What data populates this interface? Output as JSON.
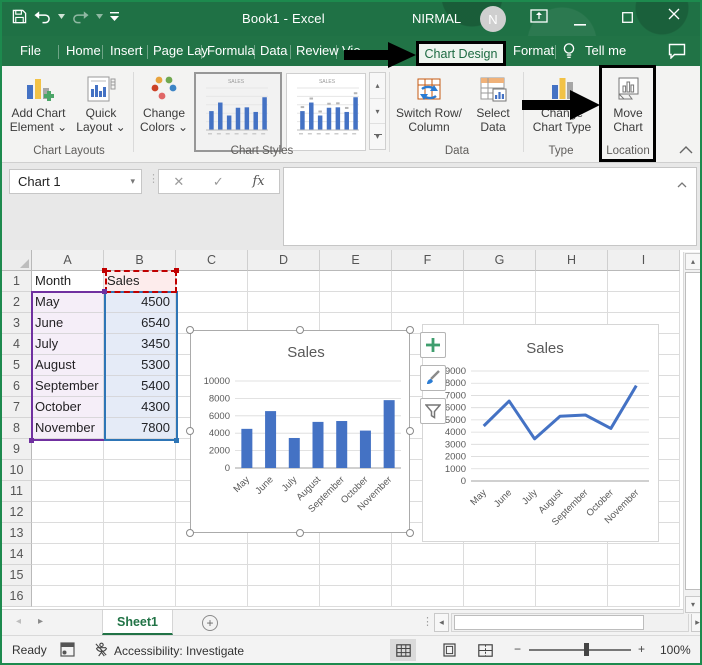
{
  "titlebar": {
    "title": "Book1 - Excel",
    "user": "NIRMAL",
    "avatar": "N"
  },
  "menu": {
    "tabs": [
      "File",
      "Home",
      "Insert",
      "Page Lay",
      "Formula",
      "Data",
      "Review",
      "Vie"
    ],
    "active": "Chart Design",
    "format": "Format",
    "tellme": "Tell me"
  },
  "ribbon": {
    "add_chart_element": [
      "Add Chart",
      "Element ⌄"
    ],
    "quick_layout": [
      "Quick",
      "Layout ⌄"
    ],
    "change_colors": [
      "Change",
      "Colors ⌄"
    ],
    "switch_row": [
      "Switch Row/",
      "Column"
    ],
    "select_data": [
      "Select",
      "Data"
    ],
    "change_chart_type": [
      "Change",
      "Chart Type"
    ],
    "move_chart": [
      "Move",
      "Chart"
    ],
    "groups": {
      "layouts": "Chart Layouts",
      "styles": "Chart Styles",
      "data": "Data",
      "type": "Type",
      "location": "Location"
    }
  },
  "formula_bar": {
    "name_box": "Chart 1",
    "cancel": "✕",
    "enter": "✓",
    "fx": "fx"
  },
  "glyphs": {
    "caret_down": "▾",
    "caret_up": "▴",
    "left": "◂",
    "right": "▸",
    "dots_v": "⋮",
    "plus": "+",
    "minus": "−"
  },
  "sheet": {
    "columns": [
      "A",
      "B",
      "C",
      "D",
      "E",
      "F",
      "G",
      "H",
      "I"
    ],
    "rows": 16,
    "cells": {
      "A1": "Month",
      "B1": "Sales",
      "A2": "May",
      "B2": "4500",
      "A3": "June",
      "B3": "6540",
      "A4": "July",
      "B4": "3450",
      "A5": "August",
      "B5": "5300",
      "A6": "September",
      "B6": "5400",
      "A7": "October",
      "B7": "4300",
      "A8": "November",
      "B8": "7800"
    }
  },
  "sheet_tabs": {
    "active": "Sheet1"
  },
  "status": {
    "ready": "Ready",
    "accessibility": "Accessibility: Investigate",
    "zoom_level": "100%"
  },
  "colors": {
    "accent_green": "#217346",
    "chart_blue": "#4472C4",
    "range_purple": "#7030A0",
    "range_blue": "#2E75B6",
    "range_red": "#C00000"
  },
  "chart_data": [
    {
      "type": "bar",
      "title": "Sales",
      "categories": [
        "May",
        "June",
        "July",
        "August",
        "September",
        "October",
        "November"
      ],
      "values": [
        4500,
        6540,
        3450,
        5300,
        5400,
        4300,
        7800
      ],
      "xlabel": "",
      "ylabel": "",
      "ylim": [
        0,
        10000
      ],
      "ytick": 2000,
      "series_color": "#4472C4",
      "grid": true,
      "legend": false
    },
    {
      "type": "line",
      "title": "Sales",
      "categories": [
        "May",
        "June",
        "July",
        "August",
        "September",
        "October",
        "November"
      ],
      "values": [
        4500,
        6540,
        3450,
        5300,
        5400,
        4300,
        7800
      ],
      "xlabel": "",
      "ylabel": "",
      "ylim": [
        0,
        9000
      ],
      "ytick": 1000,
      "series_color": "#4472C4",
      "grid": true,
      "legend": false
    }
  ]
}
